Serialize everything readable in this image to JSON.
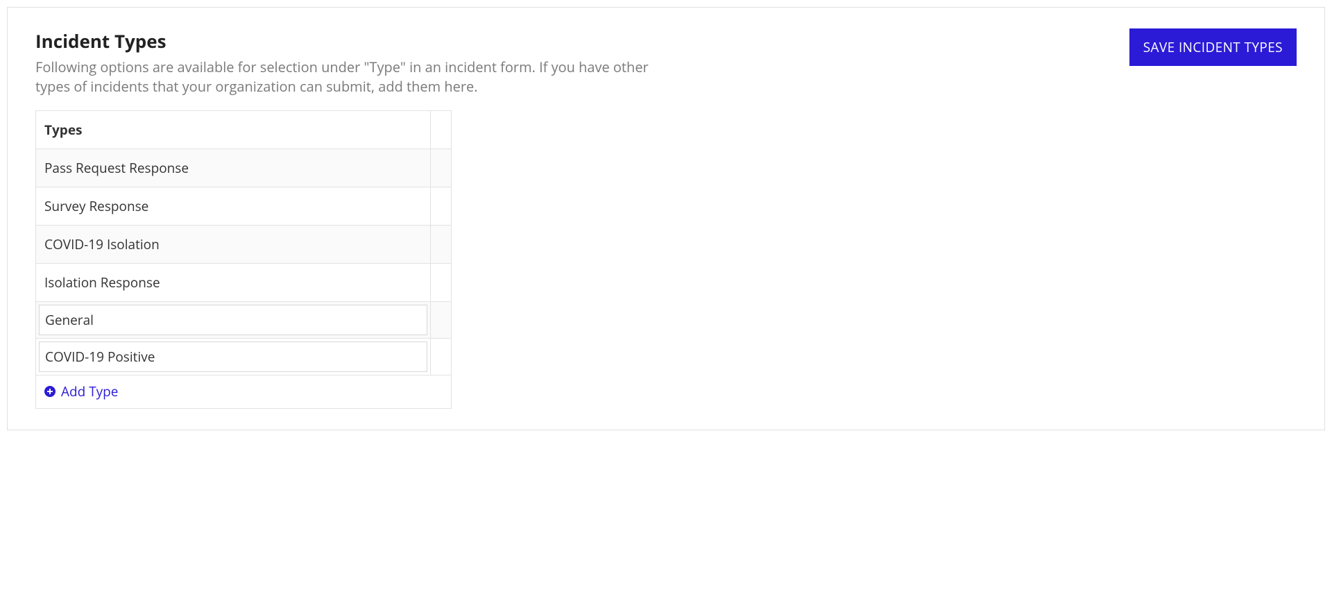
{
  "header": {
    "title": "Incident Types",
    "description": "Following options are available for selection under \"Type\" in an incident form. If you have other types of incidents that your organization can submit, add them here.",
    "save_label": "SAVE INCIDENT TYPES"
  },
  "table": {
    "column_header": "Types",
    "rows": [
      {
        "label": "Pass Request Response",
        "editable": false
      },
      {
        "label": "Survey Response",
        "editable": false
      },
      {
        "label": "COVID-19 Isolation",
        "editable": false
      },
      {
        "label": "Isolation Response",
        "editable": false
      },
      {
        "label": "General",
        "editable": true
      },
      {
        "label": "COVID-19 Positive",
        "editable": true
      }
    ],
    "add_label": "Add Type"
  },
  "colors": {
    "primary": "#2b1bd6",
    "border": "#e0e0e0",
    "text_muted": "#7a7a7a",
    "row_stripe": "#fafafa"
  }
}
